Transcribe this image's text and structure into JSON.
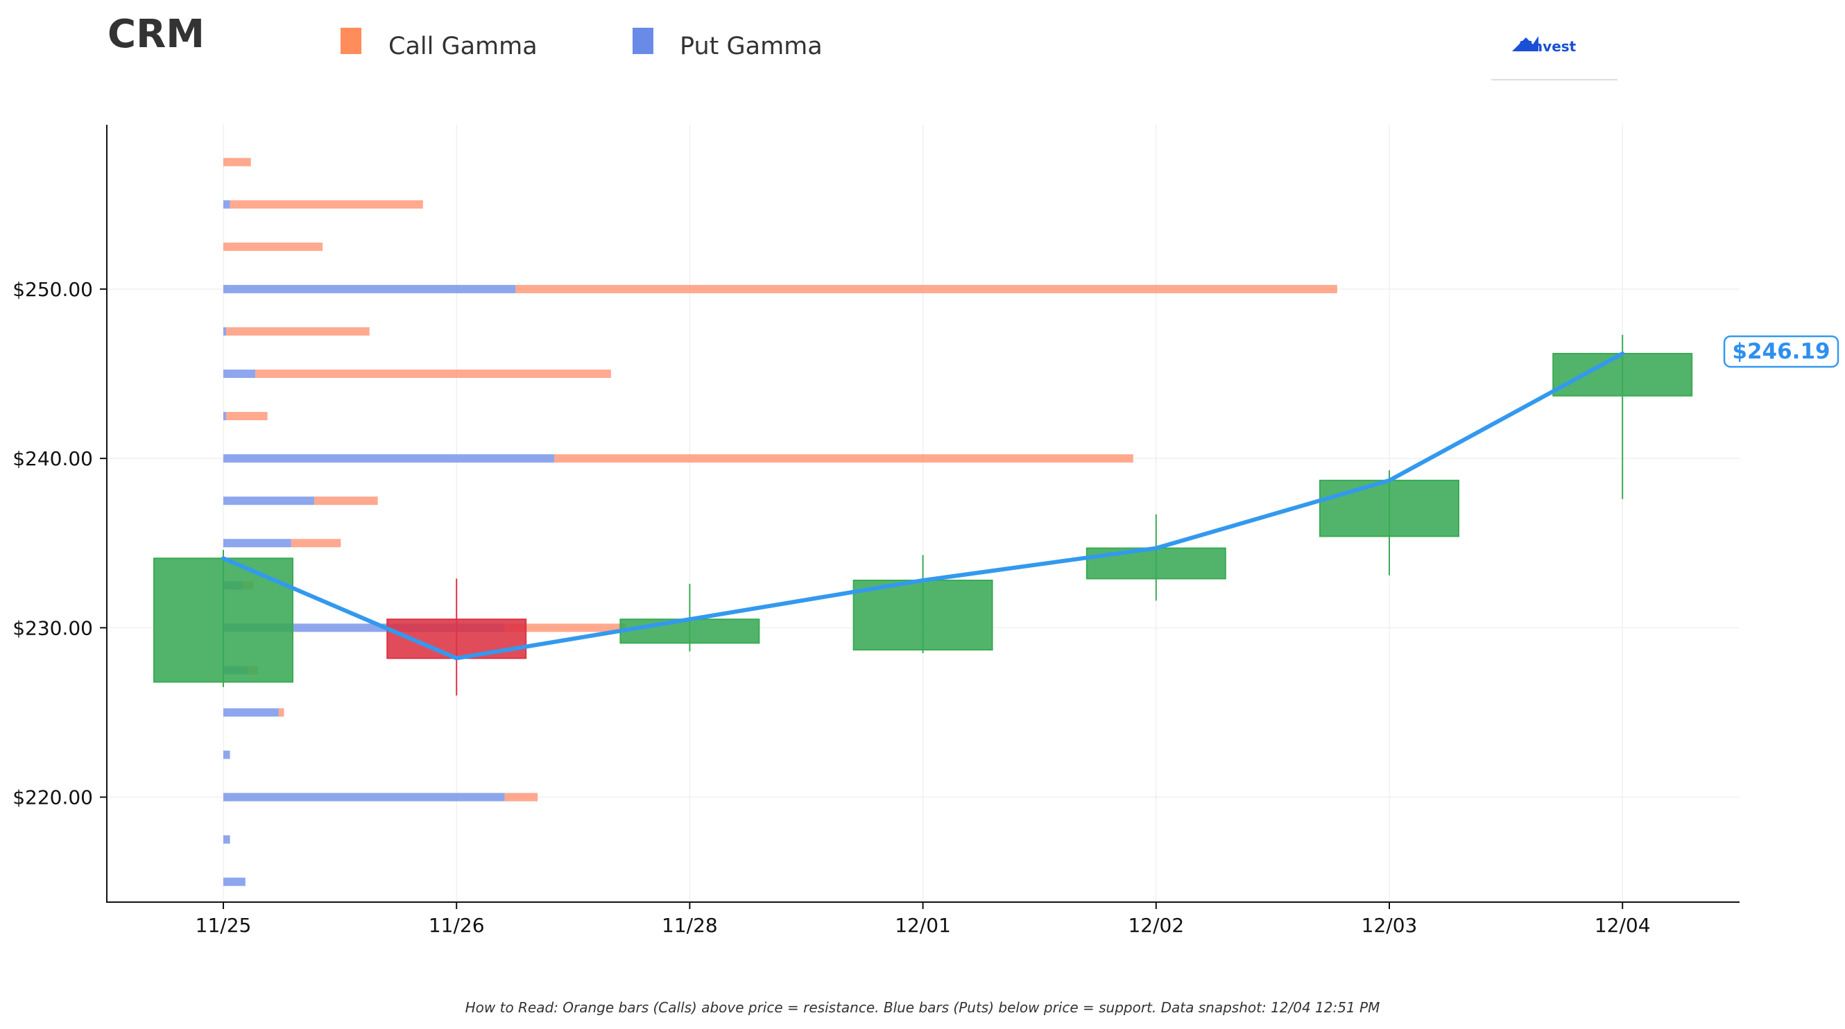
{
  "ticker": "CRM",
  "legend": {
    "call_label": "Call Gamma",
    "put_label": "Put Gamma"
  },
  "logo": {
    "text": "AInvest"
  },
  "footnote": "How to Read: Orange bars (Calls) above price = resistance. Blue bars (Puts) below price = support. Data snapshot: 12/04 12:51 PM",
  "colors": {
    "call": "#ff8c69",
    "put": "#7090e8",
    "up": "#3aaa55",
    "down": "#dd3344",
    "price_line": "#3399ee",
    "legend_call": "#ff8c5a",
    "legend_put": "#6a8ae8"
  },
  "chart_data": {
    "type": "candlestick",
    "categories": [
      "11/25",
      "11/26",
      "11/28",
      "12/01",
      "12/02",
      "12/03",
      "12/04"
    ],
    "y_ticks": [
      "$220.00",
      "$230.00",
      "$240.00",
      "$250.00"
    ],
    "y_tick_values": [
      220,
      230,
      240,
      250
    ],
    "ylim": [
      213.8,
      259.7
    ],
    "grid": true,
    "candles": [
      {
        "date": "11/25",
        "open": 226.8,
        "high": 234.6,
        "low": 226.5,
        "close": 234.1
      },
      {
        "date": "11/26",
        "open": 230.5,
        "high": 232.9,
        "low": 226.0,
        "close": 228.2
      },
      {
        "date": "11/28",
        "open": 229.1,
        "high": 232.6,
        "low": 228.6,
        "close": 230.5
      },
      {
        "date": "12/01",
        "open": 228.7,
        "high": 234.3,
        "low": 228.5,
        "close": 232.8
      },
      {
        "date": "12/02",
        "open": 232.9,
        "high": 236.7,
        "low": 231.6,
        "close": 234.7
      },
      {
        "date": "12/03",
        "open": 235.4,
        "high": 239.3,
        "low": 233.1,
        "close": 238.7
      },
      {
        "date": "12/04",
        "open": 243.7,
        "high": 247.3,
        "low": 237.6,
        "close": 246.19
      }
    ],
    "price_line": {
      "name": "Price",
      "values": [
        234.1,
        228.2,
        230.5,
        232.8,
        234.7,
        238.7,
        246.19
      ]
    },
    "last_price_label": "$246.19",
    "gamma_profile": {
      "strikes": [
        257.5,
        255,
        252.5,
        250,
        247.5,
        245,
        242.5,
        240,
        237.5,
        235,
        232.5,
        230,
        227.5,
        225,
        222.5,
        220,
        217.5,
        215
      ],
      "put_gamma": [
        0,
        0.12,
        0,
        5.3,
        0.05,
        0.58,
        0.05,
        6.0,
        1.65,
        1.23,
        0.35,
        5.1,
        0.45,
        1.0,
        0.12,
        5.1,
        0.12,
        0.4
      ],
      "call_gamma": [
        0.5,
        3.5,
        1.8,
        14.9,
        2.6,
        6.45,
        0.75,
        10.5,
        1.15,
        0.9,
        0.2,
        2.2,
        0.18,
        0.1,
        0,
        0.6,
        0,
        0
      ]
    }
  }
}
